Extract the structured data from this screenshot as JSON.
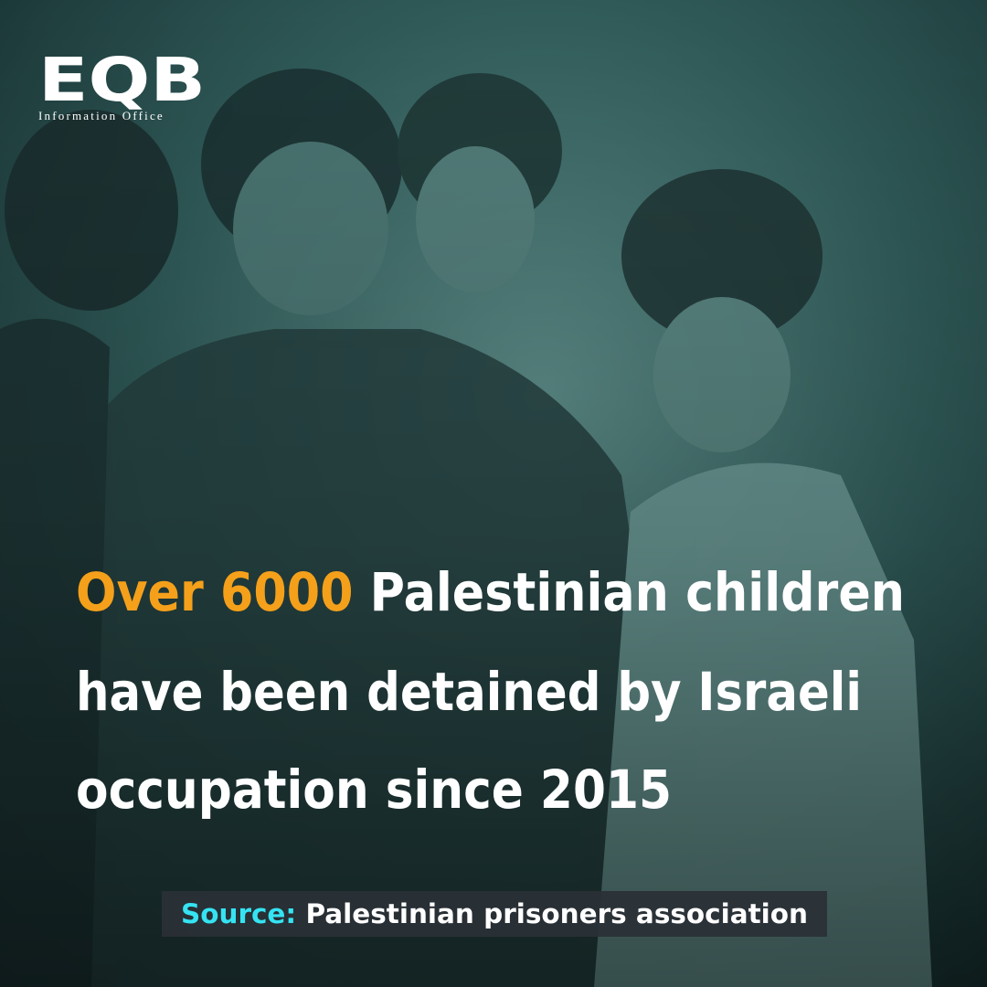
{
  "logo": {
    "title": "EQB",
    "subtitle": "Information Office"
  },
  "headline": {
    "highlight": "Over 6000",
    "lines": [
      "Palestinian children",
      "have been detained by Israeli",
      "occupation since 2015"
    ]
  },
  "source": {
    "label": "Source:",
    "text": "Palestinian prisoners association"
  }
}
